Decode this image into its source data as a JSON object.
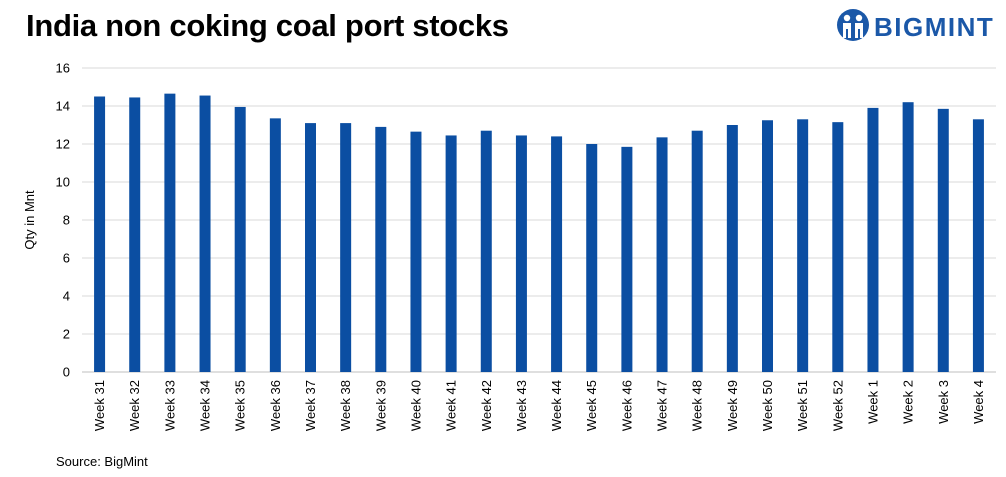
{
  "brand": {
    "name": "BIGMINT",
    "color": "#1b58a8"
  },
  "source": "Source: BigMint",
  "chart_data": {
    "type": "bar",
    "title": "India non coking coal port stocks",
    "xlabel": "",
    "ylabel": "Qty in Mnt",
    "ylim": [
      0,
      16
    ],
    "yticks": [
      0,
      2,
      4,
      6,
      8,
      10,
      12,
      14,
      16
    ],
    "grid": true,
    "bar_color": "#0b4ea2",
    "categories": [
      "Week 31",
      "Week 32",
      "Week 33",
      "Week 34",
      "Week 35",
      "Week 36",
      "Week 37",
      "Week 38",
      "Week 39",
      "Week 40",
      "Week 41",
      "Week 42",
      "Week 43",
      "Week 44",
      "Week 45",
      "Week 46",
      "Week 47",
      "Week 48",
      "Week 49",
      "Week 50",
      "Week 51",
      "Week 52",
      "Week 1",
      "Week 2",
      "Week 3",
      "Week 4"
    ],
    "values": [
      14.5,
      14.45,
      14.65,
      14.55,
      13.95,
      13.35,
      13.1,
      13.1,
      12.9,
      12.65,
      12.45,
      12.7,
      12.45,
      12.4,
      12.0,
      11.85,
      12.35,
      12.7,
      13.0,
      13.25,
      13.3,
      13.15,
      13.9,
      14.2,
      13.85,
      13.3
    ]
  }
}
